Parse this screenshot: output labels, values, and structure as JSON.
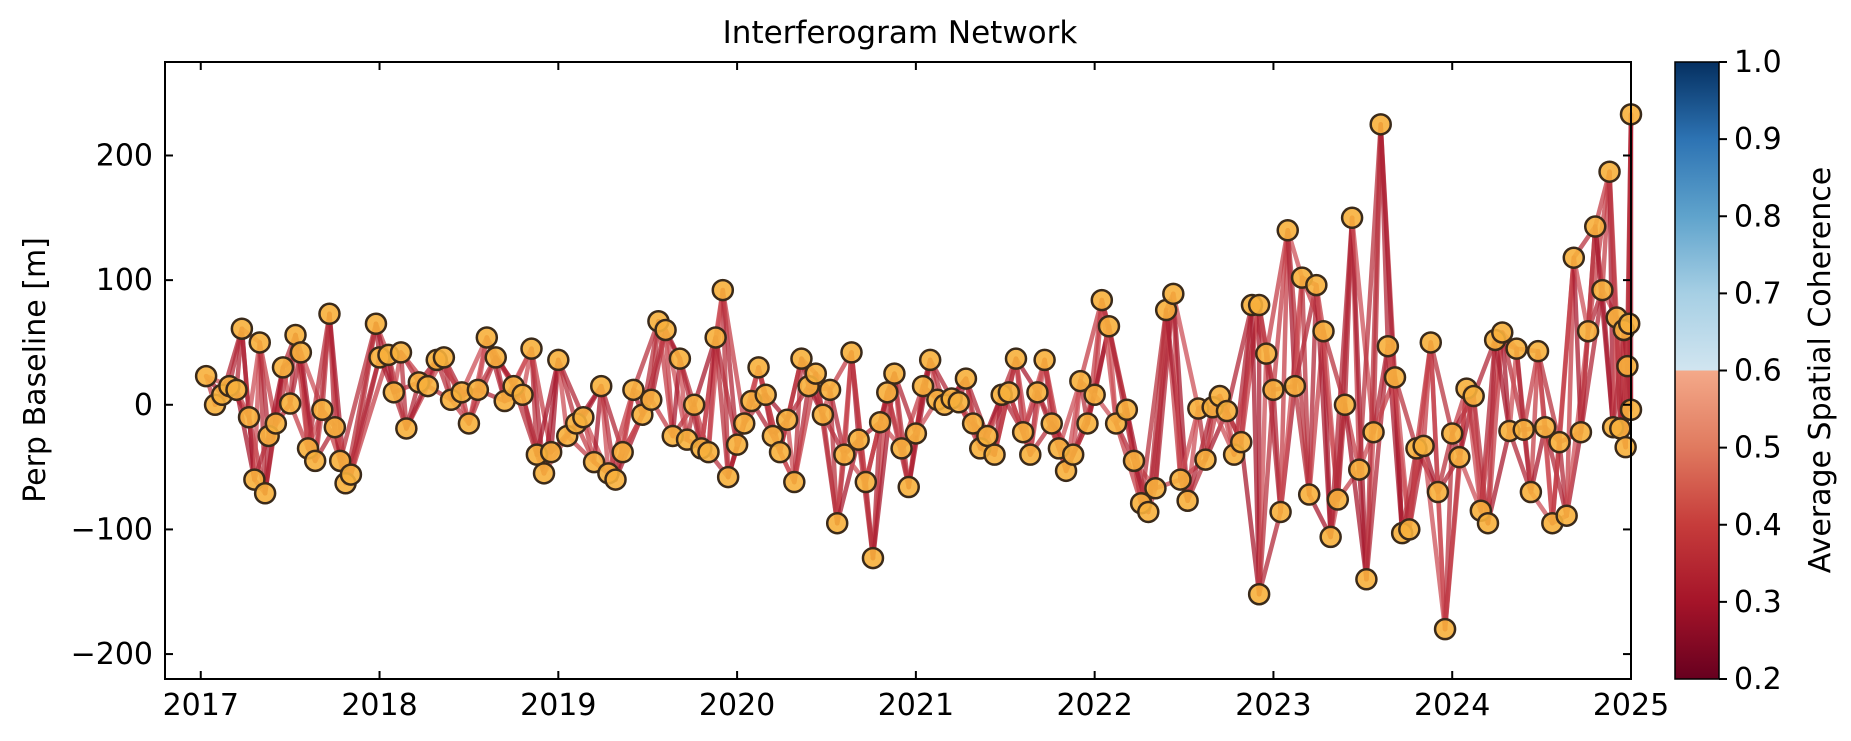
{
  "chart_data": {
    "type": "network-scatter",
    "title": "Interferogram Network",
    "xlabel": "",
    "ylabel": "Perp Baseline [m]",
    "xlim": [
      2016.8,
      2025.0
    ],
    "ylim": [
      -220,
      275
    ],
    "x_ticks": [
      2017,
      2018,
      2019,
      2020,
      2021,
      2022,
      2023,
      2024,
      2025
    ],
    "y_ticks": [
      -200,
      -100,
      0,
      100,
      200
    ],
    "colorbar": {
      "label": "Average Spatial Coherence",
      "min": 0.2,
      "max": 1.0,
      "ticks": [
        0.2,
        0.3,
        0.4,
        0.5,
        0.6,
        0.7,
        0.8,
        0.9,
        1.0
      ],
      "colormap": "RdBu"
    },
    "edge_color": "#c0303a",
    "node_color": "#f7b03c",
    "node_edge_color": "#3a2a1a",
    "nodes": [
      [
        2017.03,
        23
      ],
      [
        2017.08,
        0
      ],
      [
        2017.12,
        8
      ],
      [
        2017.16,
        15
      ],
      [
        2017.2,
        12
      ],
      [
        2017.23,
        61
      ],
      [
        2017.27,
        -10
      ],
      [
        2017.3,
        -60
      ],
      [
        2017.33,
        50
      ],
      [
        2017.36,
        -71
      ],
      [
        2017.38,
        -25
      ],
      [
        2017.42,
        -15
      ],
      [
        2017.46,
        30
      ],
      [
        2017.5,
        1
      ],
      [
        2017.53,
        56
      ],
      [
        2017.56,
        42
      ],
      [
        2017.6,
        -35
      ],
      [
        2017.64,
        -45
      ],
      [
        2017.68,
        -4
      ],
      [
        2017.72,
        73
      ],
      [
        2017.75,
        -18
      ],
      [
        2017.78,
        -45
      ],
      [
        2017.81,
        -63
      ],
      [
        2017.84,
        -56
      ],
      [
        2017.98,
        65
      ],
      [
        2018.0,
        38
      ],
      [
        2018.05,
        40
      ],
      [
        2018.08,
        10
      ],
      [
        2018.12,
        42
      ],
      [
        2018.15,
        -19
      ],
      [
        2018.22,
        18
      ],
      [
        2018.27,
        15
      ],
      [
        2018.32,
        36
      ],
      [
        2018.36,
        38
      ],
      [
        2018.4,
        4
      ],
      [
        2018.46,
        10
      ],
      [
        2018.5,
        -15
      ],
      [
        2018.55,
        12
      ],
      [
        2018.6,
        54
      ],
      [
        2018.65,
        38
      ],
      [
        2018.7,
        3
      ],
      [
        2018.75,
        15
      ],
      [
        2018.8,
        8
      ],
      [
        2018.85,
        45
      ],
      [
        2018.88,
        -40
      ],
      [
        2018.92,
        -55
      ],
      [
        2018.96,
        -38
      ],
      [
        2019.0,
        36
      ],
      [
        2019.05,
        -25
      ],
      [
        2019.1,
        -15
      ],
      [
        2019.14,
        -10
      ],
      [
        2019.2,
        -46
      ],
      [
        2019.24,
        15
      ],
      [
        2019.28,
        -55
      ],
      [
        2019.32,
        -60
      ],
      [
        2019.36,
        -38
      ],
      [
        2019.42,
        12
      ],
      [
        2019.47,
        -8
      ],
      [
        2019.52,
        4
      ],
      [
        2019.56,
        67
      ],
      [
        2019.6,
        60
      ],
      [
        2019.64,
        -25
      ],
      [
        2019.68,
        37
      ],
      [
        2019.72,
        -28
      ],
      [
        2019.76,
        0
      ],
      [
        2019.8,
        -35
      ],
      [
        2019.84,
        -38
      ],
      [
        2019.88,
        54
      ],
      [
        2019.92,
        92
      ],
      [
        2019.95,
        -58
      ],
      [
        2020.0,
        -32
      ],
      [
        2020.04,
        -15
      ],
      [
        2020.08,
        3
      ],
      [
        2020.12,
        30
      ],
      [
        2020.16,
        8
      ],
      [
        2020.2,
        -25
      ],
      [
        2020.24,
        -38
      ],
      [
        2020.28,
        -12
      ],
      [
        2020.32,
        -62
      ],
      [
        2020.36,
        37
      ],
      [
        2020.4,
        15
      ],
      [
        2020.44,
        25
      ],
      [
        2020.48,
        -8
      ],
      [
        2020.52,
        12
      ],
      [
        2020.56,
        -95
      ],
      [
        2020.6,
        -40
      ],
      [
        2020.64,
        42
      ],
      [
        2020.68,
        -28
      ],
      [
        2020.72,
        -62
      ],
      [
        2020.76,
        -123
      ],
      [
        2020.8,
        -14
      ],
      [
        2020.84,
        10
      ],
      [
        2020.88,
        25
      ],
      [
        2020.92,
        -35
      ],
      [
        2020.96,
        -66
      ],
      [
        2021.0,
        -23
      ],
      [
        2021.04,
        15
      ],
      [
        2021.08,
        36
      ],
      [
        2021.12,
        4
      ],
      [
        2021.16,
        0
      ],
      [
        2021.2,
        5
      ],
      [
        2021.24,
        2
      ],
      [
        2021.28,
        21
      ],
      [
        2021.32,
        -15
      ],
      [
        2021.36,
        -35
      ],
      [
        2021.4,
        -25
      ],
      [
        2021.44,
        -40
      ],
      [
        2021.48,
        8
      ],
      [
        2021.52,
        10
      ],
      [
        2021.56,
        37
      ],
      [
        2021.6,
        -22
      ],
      [
        2021.64,
        -40
      ],
      [
        2021.68,
        10
      ],
      [
        2021.72,
        36
      ],
      [
        2021.76,
        -15
      ],
      [
        2021.8,
        -35
      ],
      [
        2021.84,
        -53
      ],
      [
        2021.88,
        -40
      ],
      [
        2021.92,
        19
      ],
      [
        2021.96,
        -15
      ],
      [
        2022.0,
        8
      ],
      [
        2022.04,
        84
      ],
      [
        2022.08,
        63
      ],
      [
        2022.12,
        -15
      ],
      [
        2022.18,
        -4
      ],
      [
        2022.22,
        -45
      ],
      [
        2022.26,
        -79
      ],
      [
        2022.3,
        -86
      ],
      [
        2022.34,
        -67
      ],
      [
        2022.4,
        76
      ],
      [
        2022.44,
        89
      ],
      [
        2022.48,
        -60
      ],
      [
        2022.52,
        -77
      ],
      [
        2022.58,
        -3
      ],
      [
        2022.62,
        -44
      ],
      [
        2022.66,
        -2
      ],
      [
        2022.7,
        7
      ],
      [
        2022.74,
        -5
      ],
      [
        2022.78,
        -40
      ],
      [
        2022.82,
        -30
      ],
      [
        2022.88,
        80
      ],
      [
        2022.92,
        80
      ],
      [
        2022.96,
        41
      ],
      [
        2023.0,
        12
      ],
      [
        2023.04,
        -86
      ],
      [
        2023.08,
        140
      ],
      [
        2023.12,
        15
      ],
      [
        2023.16,
        102
      ],
      [
        2023.2,
        -72
      ],
      [
        2023.24,
        96
      ],
      [
        2023.28,
        59
      ],
      [
        2023.32,
        -106
      ],
      [
        2023.36,
        -76
      ],
      [
        2023.4,
        0
      ],
      [
        2023.44,
        150
      ],
      [
        2023.48,
        -52
      ],
      [
        2023.52,
        -140
      ],
      [
        2023.56,
        -22
      ],
      [
        2023.6,
        225
      ],
      [
        2023.64,
        47
      ],
      [
        2023.68,
        22
      ],
      [
        2023.72,
        -103
      ],
      [
        2023.76,
        -100
      ],
      [
        2023.8,
        -35
      ],
      [
        2023.84,
        -33
      ],
      [
        2023.88,
        50
      ],
      [
        2023.92,
        -70
      ],
      [
        2023.96,
        -180
      ],
      [
        2024.0,
        -23
      ],
      [
        2024.04,
        -42
      ],
      [
        2024.08,
        13
      ],
      [
        2024.12,
        7
      ],
      [
        2024.16,
        -85
      ],
      [
        2024.2,
        -95
      ],
      [
        2024.24,
        52
      ],
      [
        2024.28,
        58
      ],
      [
        2024.32,
        -21
      ],
      [
        2024.36,
        45
      ],
      [
        2024.4,
        -20
      ],
      [
        2024.44,
        -70
      ],
      [
        2024.48,
        43
      ],
      [
        2024.52,
        -18
      ],
      [
        2024.56,
        -95
      ],
      [
        2024.6,
        -30
      ],
      [
        2024.64,
        -89
      ],
      [
        2024.68,
        118
      ],
      [
        2024.72,
        -22
      ],
      [
        2024.76,
        59
      ],
      [
        2024.8,
        143
      ],
      [
        2024.84,
        92
      ],
      [
        2024.88,
        187
      ],
      [
        2024.9,
        -18
      ],
      [
        2024.92,
        70
      ],
      [
        2024.94,
        -19
      ],
      [
        2024.96,
        60
      ],
      [
        2024.97,
        -34
      ],
      [
        2024.98,
        31
      ],
      [
        2024.99,
        65
      ],
      [
        2025.0,
        233
      ],
      [
        2025.0,
        -4
      ],
      [
        2022.92,
        -152
      ]
    ]
  }
}
